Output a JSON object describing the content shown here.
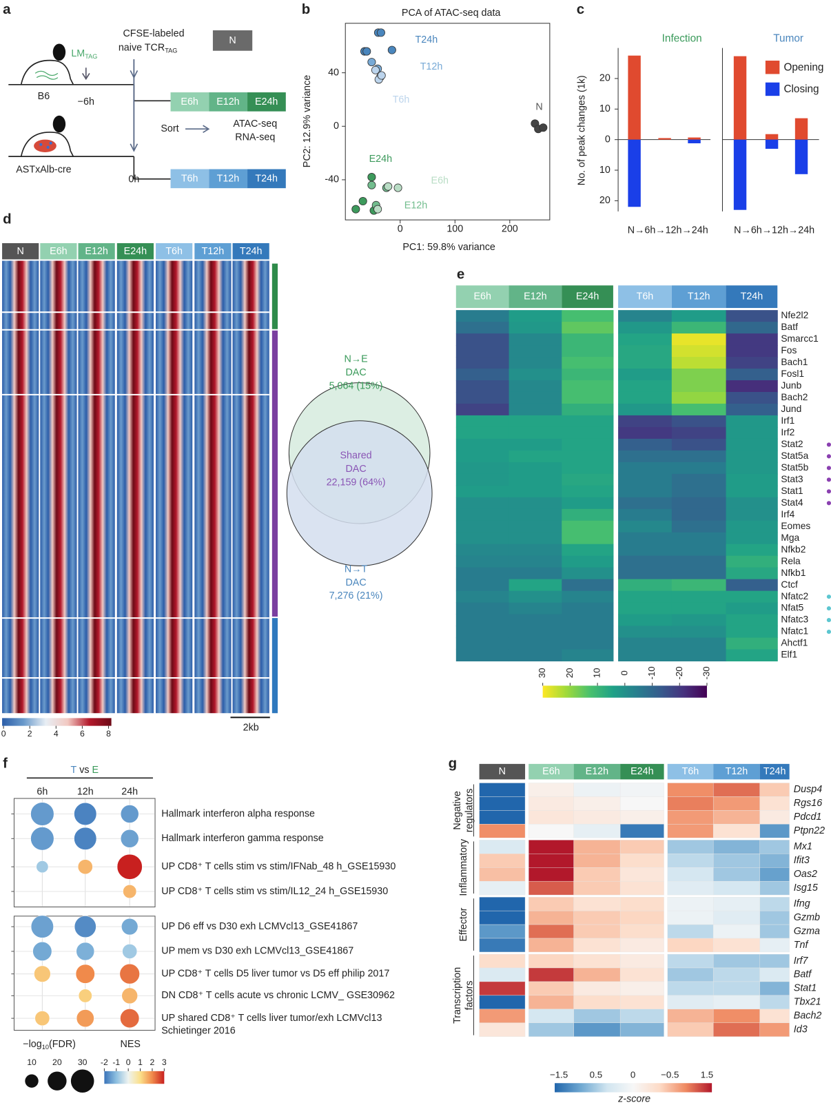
{
  "panel_a": {
    "letter": "a",
    "lm": "LM",
    "lm_sub": "TAG",
    "cfse": "CFSE-labeled",
    "naive": "naive TCR",
    "naive_sub": "TAG",
    "n_box": "N",
    "b6": "B6",
    "t_infect": "−6h",
    "ast": "ASTxAlb-cre",
    "t_tumor": "0h",
    "sort": "Sort",
    "assay_1": "ATAC-seq",
    "assay_2": "RNA-seq",
    "e_boxes": [
      "E6h",
      "E12h",
      "E24h"
    ],
    "t_boxes": [
      "T6h",
      "T12h",
      "T24h"
    ],
    "e_colors": [
      "#93d1b0",
      "#62b488",
      "#358f55"
    ],
    "t_colors": [
      "#8ec0e6",
      "#5e9fd4",
      "#3479bb"
    ]
  },
  "panel_b": {
    "letter": "b",
    "chart_data": {
      "type": "scatter",
      "title": "PCA of ATAC-seq data",
      "xlabel": "PC1: 59.8% variance",
      "ylabel": "PC2: 12.9% variance",
      "xlim": [
        -100,
        273
      ],
      "ylim": [
        -70,
        77
      ],
      "xticks": [
        0,
        100,
        200
      ],
      "yticks": [
        -40,
        0,
        40
      ],
      "series": [
        {
          "name": "T24h",
          "color": "#4a86bd",
          "x": [
            -40,
            -35,
            -15,
            -65,
            -61
          ],
          "values": [
            70,
            70,
            57,
            56,
            56
          ]
        },
        {
          "name": "T12h",
          "color": "#78aad6",
          "x": [
            -52,
            -41,
            -36
          ],
          "values": [
            48,
            43,
            37
          ]
        },
        {
          "name": "T6h",
          "color": "#bcd4ec",
          "x": [
            -45,
            -39,
            -34
          ],
          "values": [
            42,
            35,
            38
          ]
        },
        {
          "name": "N",
          "color": "#444444",
          "x": [
            246,
            252,
            261
          ],
          "values": [
            2,
            -2,
            -1
          ]
        },
        {
          "name": "E24h",
          "color": "#3d9a5c",
          "x": [
            -52,
            -81,
            -48,
            -68
          ],
          "values": [
            -38,
            -62,
            -63,
            -56
          ]
        },
        {
          "name": "E12h",
          "color": "#72bd8e",
          "x": [
            -25,
            -52,
            -44
          ],
          "values": [
            -46,
            -44,
            -59
          ]
        },
        {
          "name": "E6h",
          "color": "#b9ddc5",
          "x": [
            -4,
            -22,
            -41
          ],
          "values": [
            -46,
            -45,
            -62
          ]
        }
      ]
    }
  },
  "panel_c": {
    "letter": "c",
    "chart_data": {
      "type": "bar",
      "ylabel": "No. of peak changes (1k)",
      "ylim": [
        -23.5,
        30
      ],
      "yticks": [
        {
          "value": -20,
          "label": "20"
        },
        {
          "value": -10,
          "label": "10"
        },
        0,
        10,
        20
      ],
      "series": [
        {
          "name": "Opening",
          "color": "#e04a2f"
        },
        {
          "name": "Closing",
          "color": "#1a3fe8"
        }
      ],
      "panels": [
        {
          "title": "Infection",
          "title_color": "#3a9a5a",
          "xlabel": "N→6h→12h→24h",
          "values": [
            [
              27.5,
              0.5,
              0.7
            ],
            [
              -22,
              0,
              -1.2
            ]
          ]
        },
        {
          "title": "Tumor",
          "title_color": "#4a86bd",
          "xlabel": "N→6h→12h→24h",
          "values": [
            [
              27.3,
              1.8,
              7
            ],
            [
              -23,
              -3,
              -11.3
            ]
          ]
        }
      ]
    }
  },
  "panel_d": {
    "letter": "d",
    "columns": [
      "N",
      "E6h",
      "E12h",
      "E24h",
      "T6h",
      "T12h",
      "T24h"
    ],
    "column_colors": [
      "#555555",
      "#93d1b0",
      "#62b488",
      "#358f55",
      "#8ec0e6",
      "#5e9fd4",
      "#3479bb"
    ],
    "colorbar": {
      "ticks": [
        0,
        2,
        4,
        6,
        8
      ],
      "colors": [
        "#2b5da8",
        "#6b9bcc",
        "#e8eef4",
        "#f2c9c2",
        "#b2182b",
        "#6d0a16"
      ]
    },
    "scale_label": "2kb",
    "venn": {
      "e": [
        "N→E",
        "DAC",
        "5,064 (15%)"
      ],
      "shared": [
        "Shared",
        "DAC",
        "22,159 (64%)"
      ],
      "t": [
        "N→T",
        "DAC",
        "7,276 (21%)"
      ]
    }
  },
  "panel_e": {
    "letter": "e",
    "columns": [
      "E6h",
      "E12h",
      "E24h",
      "T6h",
      "T12h",
      "T24h"
    ],
    "column_colors": [
      "#93d1b0",
      "#62b488",
      "#358f55",
      "#8ec0e6",
      "#5e9fd4",
      "#3479bb"
    ],
    "rows": [
      "Nfe2l2",
      "Batf",
      "Smarcc1",
      "Fos",
      "Bach1",
      "Fosl1",
      "Junb",
      "Bach2",
      "Jund",
      "Irf1",
      "Irf2",
      "Stat2",
      "Stat5a",
      "Stat5b",
      "Stat3",
      "Stat1",
      "Stat4",
      "Irf4",
      "Eomes",
      "Mga",
      "Nfkb2",
      "Rela",
      "Nfkb1",
      "Ctcf",
      "Nfatc2",
      "Nfat5",
      "Nfatc3",
      "Nfatc1",
      "Ahctf1",
      "Elf1"
    ],
    "values": [
      [
        -5,
        3,
        12,
        -3,
        3,
        -15
      ],
      [
        -8,
        2,
        15,
        2,
        10,
        -10
      ],
      [
        -15,
        -2,
        10,
        5,
        28,
        -20
      ],
      [
        -15,
        -2,
        10,
        6,
        26,
        -20
      ],
      [
        -15,
        -2,
        12,
        6,
        24,
        -18
      ],
      [
        -12,
        0,
        10,
        3,
        18,
        -12
      ],
      [
        -15,
        -2,
        12,
        5,
        18,
        -22
      ],
      [
        -15,
        -2,
        12,
        5,
        20,
        -15
      ],
      [
        -18,
        -2,
        8,
        2,
        12,
        -12
      ],
      [
        5,
        5,
        5,
        -18,
        -15,
        2
      ],
      [
        5,
        5,
        5,
        -20,
        -18,
        2
      ],
      [
        3,
        3,
        5,
        -12,
        -15,
        2
      ],
      [
        3,
        5,
        5,
        -8,
        -8,
        2
      ],
      [
        2,
        3,
        5,
        -5,
        -5,
        2
      ],
      [
        2,
        3,
        6,
        -5,
        -8,
        3
      ],
      [
        3,
        3,
        5,
        -5,
        -8,
        3
      ],
      [
        0,
        0,
        3,
        -8,
        -10,
        0
      ],
      [
        0,
        0,
        8,
        -5,
        -10,
        0
      ],
      [
        0,
        0,
        12,
        -2,
        -8,
        2
      ],
      [
        0,
        0,
        12,
        -5,
        -5,
        2
      ],
      [
        -2,
        -2,
        5,
        -5,
        -5,
        5
      ],
      [
        -3,
        -3,
        3,
        -8,
        -8,
        8
      ],
      [
        -5,
        -5,
        0,
        -8,
        -8,
        6
      ],
      [
        -5,
        5,
        -8,
        8,
        10,
        -12
      ],
      [
        -3,
        0,
        -3,
        5,
        5,
        5
      ],
      [
        -5,
        -3,
        -5,
        5,
        5,
        3
      ],
      [
        -5,
        -5,
        -5,
        3,
        2,
        5
      ],
      [
        -5,
        -5,
        -5,
        0,
        0,
        5
      ],
      [
        -5,
        -5,
        -5,
        -3,
        -3,
        8
      ],
      [
        -5,
        -5,
        -3,
        -3,
        -3,
        5
      ]
    ],
    "colorbar": {
      "ticks": [
        30,
        20,
        10,
        0,
        -10,
        -20,
        -30
      ],
      "colors": [
        "#fde725",
        "#a0da39",
        "#4ac16d",
        "#1fa187",
        "#277f8e",
        "#365c8d",
        "#46327e",
        "#440154"
      ]
    }
  },
  "panel_f": {
    "letter": "f",
    "header_t": "T",
    "header_vs": "vs",
    "header_e": "E",
    "columns": [
      "6h",
      "12h",
      "24h"
    ],
    "terms": [
      [
        "Hallmark interferon alpha response"
      ],
      [
        "Hallmark interferon gamma response"
      ],
      [
        "UP CD8⁺ T   cells stim vs stim/IFNab_48 h_GSE15930"
      ],
      [
        "UP CD8⁺ T   cells stim vs stim/IL12_24 h_GSE15930"
      ],
      [
        "UP D6 eff vs D30 exh LCMVcl13_GSE41867"
      ],
      [
        "UP mem vs D30 exh LCMVcl13_GSE41867"
      ],
      [
        "UP CD8⁺ T   cells D5 liver tumor vs D5 eff philip 2017"
      ],
      [
        "DN CD8⁺ T   cells acute vs chronic LCMV_ GSE30962"
      ],
      [
        "UP shared CD8⁺ T   cells liver tumor/exh LCMVcl13",
        "Schietinger 2016"
      ]
    ],
    "nes": [
      [
        -1.5,
        -1.8,
        -1.5
      ],
      [
        -1.5,
        -1.8,
        -1.4
      ],
      [
        -0.8,
        1.5,
        3
      ],
      [
        null,
        null,
        1.5
      ],
      [
        -1.4,
        -1.7,
        -1.3
      ],
      [
        -1.3,
        -1.2,
        -0.8
      ],
      [
        1.3,
        2,
        2.2
      ],
      [
        null,
        1.2,
        1.5
      ],
      [
        1.3,
        1.8,
        2.3
      ]
    ],
    "size": [
      [
        30,
        28,
        18
      ],
      [
        30,
        28,
        18
      ],
      [
        8,
        12,
        35
      ],
      [
        null,
        null,
        10
      ],
      [
        28,
        26,
        15
      ],
      [
        20,
        18,
        12
      ],
      [
        15,
        20,
        22
      ],
      [
        null,
        10,
        14
      ],
      [
        12,
        17,
        20
      ]
    ],
    "size_label": "−log",
    "size_label_sub": "10",
    "size_label_end": "(FDR)",
    "nes_label": "NES",
    "size_ticks": [
      10,
      20,
      30
    ],
    "nes_ticks": [
      -2,
      -1,
      0,
      1,
      2,
      3
    ],
    "colors": [
      "#3b74b9",
      "#8dbfe0",
      "#eef3f0",
      "#fbe08a",
      "#f08a4b",
      "#c8201f"
    ]
  },
  "panel_g": {
    "letter": "g",
    "columns": [
      "N",
      "E6h",
      "E12h",
      "E24h",
      "T6h",
      "T12h",
      "T24h"
    ],
    "column_colors": [
      "#555555",
      "#93d1b0",
      "#62b488",
      "#358f55",
      "#8ec0e6",
      "#5e9fd4",
      "#3479bb"
    ],
    "row_groups": [
      {
        "label": [
          "Negative",
          "regulators"
        ],
        "genes": [
          "Dusp4",
          "Rgs16",
          "Pdcd1",
          "Ptpn22"
        ],
        "values": [
          [
            -2,
            0.2,
            -0.2,
            -0.1,
            1.3,
            1.5,
            0.8
          ],
          [
            -2,
            0.3,
            0.2,
            0,
            1.4,
            1.2,
            0.5
          ],
          [
            -2,
            0.4,
            0.3,
            0.2,
            1.2,
            1,
            0.3
          ],
          [
            1.3,
            0,
            -0.3,
            -1.8,
            1.2,
            0.5,
            -1.5
          ]
        ]
      },
      {
        "label": [
          "Inflammatory"
        ],
        "genes": [
          "Mx1",
          "Ifit3",
          "Oas2",
          "Isg15"
        ],
        "values": [
          [
            -0.5,
            2,
            1,
            0.8,
            -1,
            -1.2,
            -1
          ],
          [
            0.8,
            2,
            1,
            0.6,
            -0.8,
            -1,
            -1.2
          ],
          [
            0.9,
            2,
            0.8,
            0.4,
            -0.6,
            -1,
            -1.4
          ],
          [
            -0.3,
            1.6,
            0.8,
            0.5,
            -0.4,
            -0.6,
            -1
          ]
        ]
      },
      {
        "label": [
          "Effector"
        ],
        "genes": [
          "Ifng",
          "Gzmb",
          "Gzma",
          "Tnf"
        ],
        "values": [
          [
            -2,
            0.8,
            0.5,
            0.6,
            -0.2,
            -0.3,
            -0.8
          ],
          [
            -2,
            1,
            0.8,
            0.7,
            -0.2,
            -0.4,
            -1
          ],
          [
            -1.5,
            1.5,
            0.8,
            0.6,
            -0.8,
            -0.2,
            -1
          ],
          [
            -1.8,
            1,
            0.5,
            0.3,
            0.7,
            0.5,
            -0.3
          ]
        ]
      },
      {
        "label": [
          "Transcription",
          "factors"
        ],
        "genes": [
          "Irf7",
          "Batf",
          "Stat1",
          "Tbx21",
          "Bach2",
          "Id3"
        ],
        "values": [
          [
            0.6,
            0.7,
            0.5,
            0.3,
            -0.8,
            -1,
            -1
          ],
          [
            -0.5,
            1.8,
            1,
            0.5,
            -1,
            -0.8,
            -0.5
          ],
          [
            1.8,
            0.8,
            0.3,
            0.2,
            -0.8,
            -0.8,
            -1.2
          ],
          [
            -2,
            1,
            0.6,
            0.5,
            -0.4,
            -0.3,
            -0.8
          ],
          [
            1.2,
            -0.6,
            -1,
            -0.8,
            1,
            1.3,
            0.5
          ],
          [
            0.4,
            -1,
            -1.5,
            -1.2,
            0.8,
            1.5,
            1.2
          ]
        ]
      }
    ],
    "clim": [
      -2,
      2
    ],
    "colorbar_labels": [
      "−1.5",
      "0.5",
      "0",
      "−0.5",
      "1.5"
    ],
    "colorbar_title": "z-score",
    "colors": [
      "#2166ac",
      "#6fa8d1",
      "#d1e5f0",
      "#f7f7f7",
      "#fddbc7",
      "#ef8a62",
      "#b2182b"
    ]
  }
}
